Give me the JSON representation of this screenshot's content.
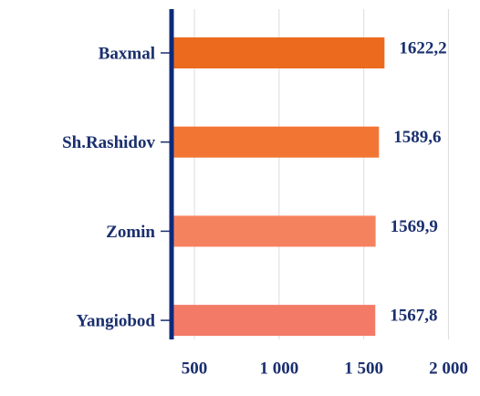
{
  "chart_data": {
    "type": "barh",
    "categories": [
      "Baxmal",
      "Sh.Rashidov",
      "Zomin",
      "Yangiobod"
    ],
    "values": [
      1622.2,
      1589.6,
      1569.9,
      1567.8
    ],
    "value_labels": [
      "1622,2",
      "1589,6",
      "1569,9",
      "1567,8"
    ],
    "colors": [
      "#ec6a1e",
      "#f27533",
      "#f5825f",
      "#f47a68"
    ],
    "xlim": [
      365,
      2100
    ],
    "xticks": [
      500,
      {
        "value": 1000,
        "label": "1 000"
      },
      {
        "value": 1500,
        "label": "1 500"
      },
      {
        "value": 2000,
        "label": "2 000"
      }
    ],
    "grid": true
  }
}
